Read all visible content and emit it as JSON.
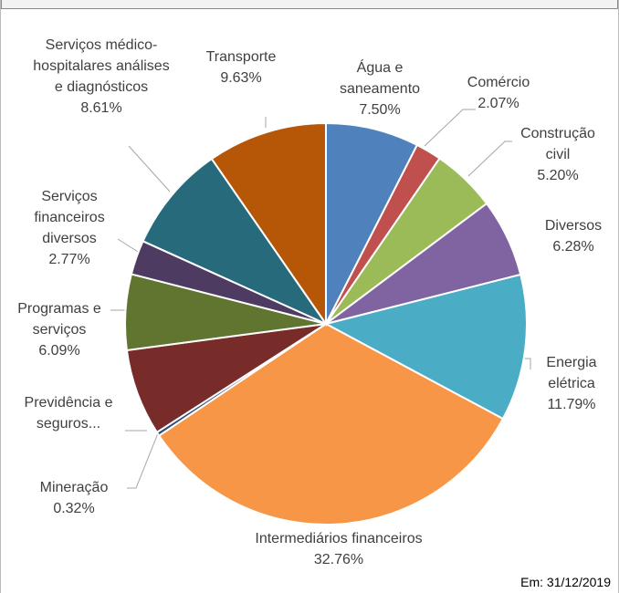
{
  "chart_data": {
    "type": "pie",
    "categories": [
      "Água e saneamento",
      "Comércio",
      "Construção civil",
      "Diversos",
      "Energia elétrica",
      "Intermediários financeiros",
      "Mineração",
      "Previdência e seguros...",
      "Programas e serviços",
      "Serviços financeiros diversos",
      "Serviços médico-hospitalares análises e diagnósticos",
      "Transporte"
    ],
    "values": [
      7.5,
      2.07,
      5.2,
      6.28,
      11.79,
      32.76,
      0.32,
      6.98,
      6.09,
      2.77,
      8.61,
      9.63
    ],
    "value_labels": [
      "7.50%",
      "2.07%",
      "5.20%",
      "6.28%",
      "11.79%",
      "32.76%",
      "0.32%",
      null,
      "6.09%",
      "2.77%",
      "8.61%",
      "9.63%"
    ],
    "colors": [
      "#4f81bd",
      "#c0504d",
      "#9bbb59",
      "#8064a2",
      "#4bacc6",
      "#f79646",
      "#2c4d75",
      "#772c2a",
      "#5f7530",
      "#4d3b62",
      "#276a7c",
      "#b65708"
    ],
    "note": "Em: 31/12/2019"
  }
}
